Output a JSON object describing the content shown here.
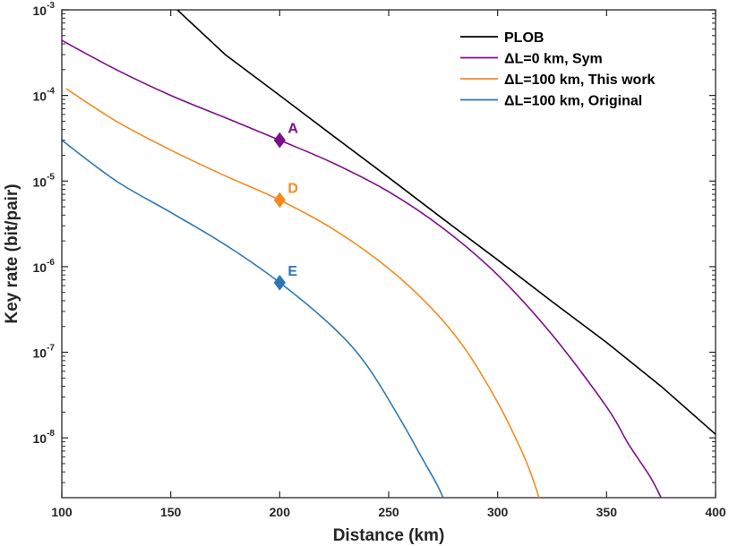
{
  "chart_data": {
    "type": "line",
    "xlabel": "Distance (km)",
    "ylabel": "Key rate (bit/pair)",
    "xlim": [
      100,
      400
    ],
    "ylim": [
      2e-09,
      0.001
    ],
    "yscale": "log",
    "x_ticks": [
      100,
      150,
      200,
      250,
      300,
      350,
      400
    ],
    "x_tick_labels": [
      "100",
      "150",
      "200",
      "250",
      "300",
      "350",
      "400"
    ],
    "y_ticks": [
      {
        "value": 1e-08,
        "base": "10",
        "exp": "-8"
      },
      {
        "value": 1e-07,
        "base": "10",
        "exp": "-7"
      },
      {
        "value": 1e-06,
        "base": "10",
        "exp": "-6"
      },
      {
        "value": 1e-05,
        "base": "10",
        "exp": "-5"
      },
      {
        "value": 0.0001,
        "base": "10",
        "exp": "-4"
      },
      {
        "value": 0.001,
        "base": "10",
        "exp": "-3"
      }
    ],
    "series": [
      {
        "name": "PLOB",
        "color": "#000000",
        "x": [
          153,
          175,
          200,
          225,
          250,
          275,
          300,
          325,
          350,
          375,
          400
        ],
        "y": [
          0.001,
          0.0003,
          0.0001,
          3.3e-05,
          1.1e-05,
          3.6e-06,
          1.2e-06,
          3.9e-07,
          1.3e-07,
          4e-08,
          1.1e-08
        ]
      },
      {
        "name": "ΔL=0 km, Sym",
        "color": "#7E0C8C",
        "x": [
          100,
          125,
          150,
          175,
          200,
          225,
          250,
          275,
          300,
          325,
          350,
          360,
          370,
          375
        ],
        "y": [
          0.00044,
          0.0002,
          0.0001,
          5.5e-05,
          3e-05,
          1.6e-05,
          7.5e-06,
          2.8e-06,
          8e-07,
          1.6e-07,
          2.3e-08,
          8.5e-09,
          3.5e-09,
          2e-09
        ]
      },
      {
        "name": "ΔL=100 km, This work",
        "color": "#F58A1F",
        "x": [
          102,
          125,
          150,
          175,
          200,
          225,
          250,
          270,
          285,
          300,
          310,
          315,
          319
        ],
        "y": [
          0.00012,
          5e-05,
          2.3e-05,
          1.15e-05,
          6e-06,
          2.7e-06,
          9.5e-07,
          3.2e-07,
          1.1e-07,
          2.6e-08,
          8e-09,
          4e-09,
          2e-09
        ]
      },
      {
        "name": "ΔL=100 km, Original",
        "color": "#2E77B6",
        "x": [
          100,
          125,
          150,
          175,
          200,
          225,
          240,
          255,
          265,
          272,
          275
        ],
        "y": [
          3e-05,
          1e-05,
          4.3e-06,
          1.8e-06,
          6.5e-07,
          1.9e-07,
          7e-08,
          1.7e-08,
          6e-09,
          2.9e-09,
          2e-09
        ]
      }
    ],
    "annotations": [
      {
        "label": "A",
        "x": 200,
        "y": 3e-05,
        "color": "#7E0C8C"
      },
      {
        "label": "D",
        "x": 200,
        "y": 6e-06,
        "color": "#F58A1F"
      },
      {
        "label": "E",
        "x": 200,
        "y": 6.5e-07,
        "color": "#2E77B6"
      }
    ],
    "legend_position": "top-right",
    "grid": false
  }
}
